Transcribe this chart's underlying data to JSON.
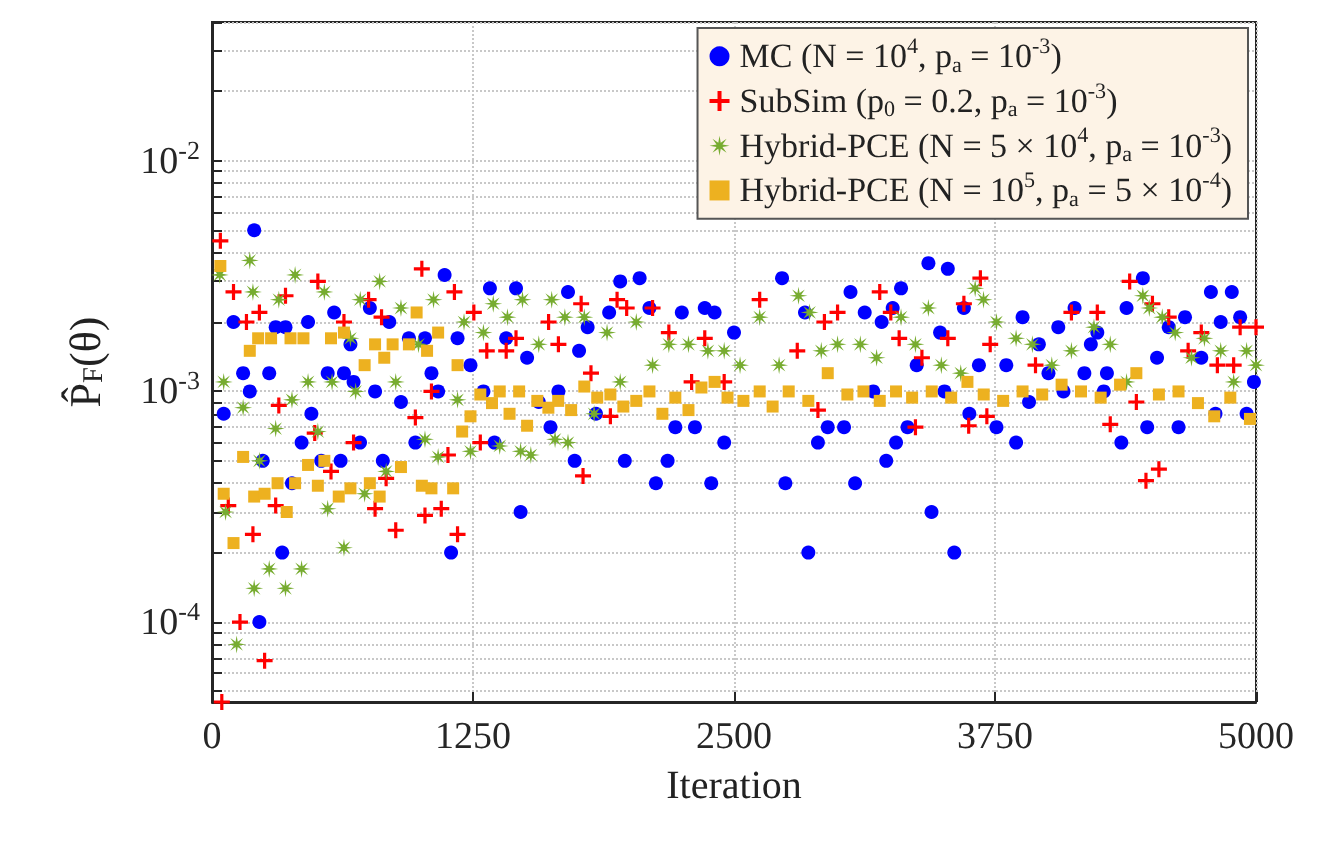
{
  "chart_data": {
    "type": "scatter",
    "xlabel": "Iteration",
    "ylabel": "P̂$_{F}$(θ)",
    "log": "y",
    "grid": true,
    "legend": "top right",
    "xlim": [
      0,
      5000
    ],
    "xticks": [
      0,
      1250,
      2500,
      3750,
      5000
    ],
    "ylim": [
      4.5e-05,
      0.04
    ],
    "yticks": [
      {
        "value": 0.0001,
        "label": "10$^{-4}$"
      },
      {
        "value": 0.001,
        "label": "10$^{-3}$"
      },
      {
        "value": 0.01,
        "label": "10$^{-2}$"
      }
    ],
    "series": [
      {
        "name": "MC (N = 10$^{4}$, p$_{a}$ = 10$^{-3}$)",
        "color": "#0000ff",
        "marker": "circle",
        "x": [
          56,
          103,
          149,
          181,
          202,
          227,
          243,
          274,
          305,
          336,
          352,
          383,
          429,
          460,
          476,
          523,
          554,
          585,
          616,
          632,
          663,
          678,
          709,
          756,
          781,
          818,
          849,
          905,
          943,
          974,
          1020,
          1051,
          1083,
          1114,
          1145,
          1176,
          1238,
          1300,
          1331,
          1353,
          1409,
          1456,
          1478,
          1509,
          1565,
          1621,
          1659,
          1705,
          1737,
          1758,
          1799,
          1839,
          1902,
          1955,
          1977,
          2048,
          2095,
          2126,
          2182,
          2219,
          2250,
          2313,
          2360,
          2391,
          2407,
          2453,
          2500,
          2730,
          2746,
          2840,
          2856,
          2902,
          2949,
          3027,
          3058,
          3080,
          3126,
          3167,
          3207,
          3229,
          3260,
          3276,
          3300,
          3331,
          3375,
          3431,
          3446,
          3487,
          3508,
          3524,
          3555,
          3601,
          3627,
          3673,
          3757,
          3804,
          3851,
          3882,
          3913,
          3960,
          4006,
          4053,
          4078,
          4131,
          4178,
          4209,
          4240,
          4271,
          4286,
          4355,
          4380,
          4458,
          4479,
          4526,
          4582,
          4629,
          4660,
          4738,
          4784,
          4806,
          4831,
          4884,
          4924,
          4955,
          4990
        ],
        "values": [
          0.0008,
          0.002,
          0.0012,
          0.001,
          0.005,
          0.0001,
          0.0005,
          0.0012,
          0.0019,
          0.0002,
          0.0019,
          0.0004,
          0.0006,
          0.002,
          0.0008,
          0.0005,
          0.0012,
          0.0022,
          0.0005,
          0.0012,
          0.0016,
          0.0011,
          0.0006,
          0.0023,
          0.001,
          0.0005,
          0.002,
          0.0009,
          0.0017,
          0.0006,
          0.0017,
          0.0012,
          0.001,
          0.0032,
          0.0002,
          0.0017,
          0.0013,
          0.001,
          0.0028,
          0.0006,
          0.0017,
          0.0028,
          0.0003,
          0.0014,
          0.0009,
          0.0007,
          0.001,
          0.0027,
          0.0005,
          0.0015,
          0.0019,
          0.0008,
          0.0022,
          0.003,
          0.0005,
          0.0031,
          0.0023,
          0.0004,
          0.0005,
          0.0007,
          0.0022,
          0.0007,
          0.0023,
          0.0004,
          0.0022,
          0.0006,
          0.0018,
          0.0031,
          0.0004,
          0.0022,
          0.0002,
          0.0006,
          0.0007,
          0.0007,
          0.0027,
          0.0004,
          0.0022,
          0.001,
          0.002,
          0.0005,
          0.0023,
          0.0006,
          0.0028,
          0.0007,
          0.0013,
          0.0036,
          0.0003,
          0.0018,
          0.001,
          0.0034,
          0.0002,
          0.0023,
          0.0008,
          0.0013,
          0.0007,
          0.0013,
          0.0006,
          0.0021,
          0.0009,
          0.0016,
          0.0012,
          0.0019,
          0.001,
          0.0023,
          0.0012,
          0.0016,
          0.0018,
          0.001,
          0.0012,
          0.0006,
          0.0023,
          0.0031,
          0.0007,
          0.0014,
          0.0019,
          0.0007,
          0.0021,
          0.0014,
          0.0027,
          0.0008,
          0.002,
          0.0027,
          0.0021,
          0.0008,
          0.0011
        ]
      },
      {
        "name": "SubSim (p$_{0}$ = 0.2, p$_{a}$ = 10$^{-3}$)",
        "color": "#ff0000",
        "marker": "cross",
        "x": [
          40,
          47,
          78,
          103,
          134,
          165,
          196,
          227,
          252,
          305,
          320,
          352,
          492,
          507,
          570,
          632,
          678,
          750,
          781,
          812,
          834,
          880,
          974,
          1005,
          1020,
          1051,
          1098,
          1130,
          1161,
          1176,
          1254,
          1285,
          1316,
          1409,
          1456,
          1612,
          1659,
          1768,
          1777,
          1815,
          1908,
          1940,
          1986,
          2110,
          2188,
          2297,
          2360,
          2453,
          2623,
          2803,
          2902,
          2933,
          2996,
          3198,
          3251,
          3291,
          3369,
          3400,
          3524,
          3601,
          3624,
          3680,
          3711,
          3727,
          3944,
          4116,
          4240,
          4302,
          4395,
          4427,
          4473,
          4504,
          4535,
          4582,
          4675,
          4738,
          4815,
          4893,
          4924,
          5000
        ],
        "values": [
          0.0045,
          4.5e-05,
          0.00032,
          0.0027,
          0.0001,
          0.002,
          0.00024,
          0.0022,
          6.8e-05,
          0.00032,
          0.00087,
          0.0026,
          0.00066,
          0.003,
          0.00045,
          0.002,
          0.0006,
          0.0025,
          0.00031,
          0.0021,
          0.00042,
          0.00025,
          0.00077,
          0.0034,
          0.00029,
          0.001,
          0.00031,
          0.00053,
          0.0027,
          0.00024,
          0.0022,
          0.0006,
          0.0015,
          0.0015,
          0.0017,
          0.002,
          0.0016,
          0.0024,
          0.00043,
          0.0012,
          0.00078,
          0.0025,
          0.0023,
          0.0023,
          0.0018,
          0.0011,
          0.0017,
          0.0011,
          0.0025,
          0.0015,
          0.00083,
          0.002,
          0.0022,
          0.0027,
          0.0022,
          0.0017,
          0.0007,
          0.0014,
          0.0017,
          0.0024,
          0.00071,
          0.0031,
          0.00078,
          0.0016,
          0.0013,
          0.0022,
          0.0022,
          0.00072,
          0.003,
          0.0009,
          0.00041,
          0.0024,
          0.00046,
          0.0021,
          0.0015,
          0.0018,
          0.0013,
          0.0013,
          0.0019,
          0.0019
        ]
      },
      {
        "name": "Hybrid-PCE (N = 5 × 10$^{4}$, p$_{a}$ = 10$^{-3}$)",
        "color": "#77ac30",
        "marker": "star",
        "x": [
          37,
          56,
          65,
          118,
          149,
          181,
          196,
          202,
          227,
          274,
          305,
          320,
          352,
          383,
          398,
          429,
          460,
          507,
          538,
          554,
          575,
          632,
          663,
          688,
          710,
          731,
          803,
          834,
          880,
          905,
          989,
          1020,
          1061,
          1083,
          1176,
          1207,
          1238,
          1300,
          1347,
          1378,
          1415,
          1478,
          1487,
          1527,
          1565,
          1627,
          1643,
          1690,
          1705,
          1783,
          1830,
          1892,
          1955,
          2032,
          2110,
          2188,
          2282,
          2375,
          2453,
          2529,
          2623,
          2716,
          2809,
          2862,
          2918,
          2996,
          3105,
          3183,
          3300,
          3369,
          3431,
          3493,
          3586,
          3655,
          3695,
          3757,
          3851,
          3929,
          4022,
          4116,
          4224,
          4302,
          4380,
          4458,
          4489,
          4551,
          4613,
          4691,
          4753,
          4831,
          4893,
          4955,
          5000
        ],
        "values": [
          0.0032,
          0.0011,
          0.0003,
          8e-05,
          0.00085,
          0.0037,
          0.0027,
          0.00014,
          0.0005,
          0.00017,
          0.00069,
          0.0025,
          0.00014,
          0.00092,
          0.0032,
          0.00017,
          0.0011,
          0.00067,
          0.0027,
          0.00031,
          0.0011,
          0.00021,
          0.0017,
          0.001,
          0.0025,
          0.00036,
          0.003,
          0.00045,
          0.0011,
          0.0023,
          0.0016,
          0.00062,
          0.0025,
          0.00052,
          0.00092,
          0.002,
          0.00055,
          0.0018,
          0.0024,
          0.00058,
          0.0021,
          0.00055,
          0.0025,
          0.00053,
          0.0016,
          0.0025,
          0.00062,
          0.0021,
          0.0006,
          0.0021,
          0.0008,
          0.0018,
          0.0011,
          0.002,
          0.0013,
          0.0016,
          0.0016,
          0.0015,
          0.0015,
          0.0013,
          0.0021,
          0.0013,
          0.0026,
          0.0022,
          0.0015,
          0.0016,
          0.0016,
          0.0014,
          0.0021,
          0.0016,
          0.0023,
          0.0013,
          0.0012,
          0.0028,
          0.0025,
          0.002,
          0.0017,
          0.0016,
          0.0013,
          0.0015,
          0.0019,
          0.0016,
          0.0011,
          0.0026,
          0.0023,
          0.0021,
          0.0018,
          0.0014,
          0.0017,
          0.0015,
          0.0011,
          0.0015,
          0.0013
        ]
      },
      {
        "name": "Hybrid-PCE (N = 10$^{5}$, p$_{a}$ = 5 × 10$^{-4}$)",
        "color": "#edb120",
        "marker": "square",
        "x": [
          40,
          56,
          103,
          149,
          181,
          202,
          221,
          252,
          283,
          314,
          358,
          376,
          398,
          438,
          460,
          507,
          538,
          570,
          607,
          632,
          663,
          731,
          756,
          781,
          803,
          825,
          865,
          905,
          943,
          980,
          1005,
          1030,
          1051,
          1083,
          1155,
          1176,
          1198,
          1238,
          1285,
          1341,
          1378,
          1425,
          1471,
          1509,
          1558,
          1611,
          1658,
          1720,
          1783,
          1845,
          1908,
          1970,
          2032,
          2095,
          2157,
          2219,
          2282,
          2344,
          2407,
          2469,
          2545,
          2623,
          2685,
          2762,
          2856,
          2949,
          3043,
          3120,
          3198,
          3276,
          3353,
          3447,
          3540,
          3618,
          3696,
          3789,
          3882,
          3976,
          4069,
          4162,
          4256,
          4349,
          4427,
          4535,
          4629,
          4722,
          4800,
          4877,
          4971
        ],
        "values": [
          0.0035,
          0.00036,
          0.00022,
          0.00052,
          0.0015,
          0.00035,
          0.0017,
          0.00036,
          0.0017,
          0.0004,
          0.0003,
          0.0017,
          0.0004,
          0.0017,
          0.00048,
          0.00039,
          0.0005,
          0.0017,
          0.00035,
          0.0018,
          0.00038,
          0.0013,
          0.0004,
          0.0016,
          0.00035,
          0.0014,
          0.0016,
          0.00047,
          0.0016,
          0.0022,
          0.00039,
          0.0015,
          0.00038,
          0.0018,
          0.00038,
          0.0013,
          0.00067,
          0.00078,
          0.00097,
          0.00089,
          0.001,
          0.0008,
          0.001,
          0.00071,
          0.00091,
          0.00085,
          0.00091,
          0.00083,
          0.00105,
          0.00094,
          0.00097,
          0.00086,
          0.00091,
          0.001,
          0.0008,
          0.00094,
          0.00083,
          0.00104,
          0.0011,
          0.00094,
          0.00091,
          0.001,
          0.00086,
          0.001,
          0.00091,
          0.0012,
          0.00097,
          0.001,
          0.00091,
          0.001,
          0.00094,
          0.001,
          0.00094,
          0.0011,
          0.00097,
          0.00091,
          0.001,
          0.00097,
          0.00107,
          0.001,
          0.00094,
          0.00107,
          0.0012,
          0.00097,
          0.001,
          0.00089,
          0.00078,
          0.00094,
          0.00076
        ]
      }
    ]
  }
}
